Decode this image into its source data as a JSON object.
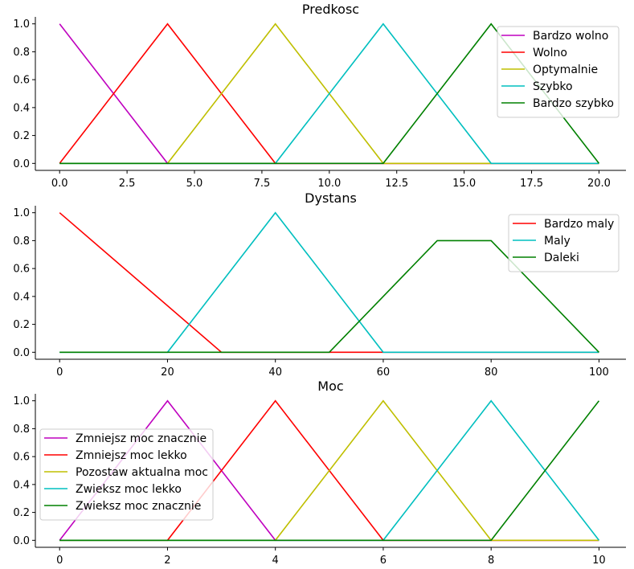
{
  "chart_data": [
    {
      "type": "line",
      "title": "Predkosc",
      "xlabel": "",
      "ylabel": "",
      "xlim": [
        -0.9,
        21.0
      ],
      "ylim": [
        -0.05,
        1.05
      ],
      "xticks": [
        0.0,
        2.5,
        5.0,
        7.5,
        10.0,
        12.5,
        15.0,
        17.5,
        20.0
      ],
      "xtick_labels": [
        "0.0",
        "2.5",
        "5.0",
        "7.5",
        "10.0",
        "12.5",
        "15.0",
        "17.5",
        "20.0"
      ],
      "yticks": [
        0.0,
        0.2,
        0.4,
        0.6,
        0.8,
        1.0
      ],
      "ytick_labels": [
        "0.0",
        "0.2",
        "0.4",
        "0.6",
        "0.8",
        "1.0"
      ],
      "legend": "top-right",
      "grid": false,
      "series": [
        {
          "name": "Bardzo wolno",
          "color": "#bf00bf",
          "x": [
            0,
            4,
            20
          ],
          "y": [
            1,
            0,
            0
          ]
        },
        {
          "name": "Wolno",
          "color": "#ff0000",
          "x": [
            0,
            4,
            8,
            20
          ],
          "y": [
            0,
            1,
            0,
            0
          ]
        },
        {
          "name": "Optymalnie",
          "color": "#bfbf00",
          "x": [
            0,
            4,
            8,
            12,
            20
          ],
          "y": [
            0,
            0,
            1,
            0,
            0
          ]
        },
        {
          "name": "Szybko",
          "color": "#00bfbf",
          "x": [
            0,
            8,
            12,
            16,
            20
          ],
          "y": [
            0,
            0,
            1,
            0,
            0
          ]
        },
        {
          "name": "Bardzo szybko",
          "color": "#008000",
          "x": [
            0,
            12,
            16,
            20
          ],
          "y": [
            0,
            0,
            1,
            0
          ]
        }
      ]
    },
    {
      "type": "line",
      "title": "Dystans",
      "xlabel": "",
      "ylabel": "",
      "xlim": [
        -4.5,
        105.0
      ],
      "ylim": [
        -0.05,
        1.05
      ],
      "xticks": [
        0,
        20,
        40,
        60,
        80,
        100
      ],
      "xtick_labels": [
        "0",
        "20",
        "40",
        "60",
        "80",
        "100"
      ],
      "yticks": [
        0.0,
        0.2,
        0.4,
        0.6,
        0.8,
        1.0
      ],
      "ytick_labels": [
        "0.0",
        "0.2",
        "0.4",
        "0.6",
        "0.8",
        "1.0"
      ],
      "legend": "top-right",
      "grid": false,
      "series": [
        {
          "name": "Bardzo maly",
          "color": "#ff0000",
          "x": [
            0,
            30,
            100
          ],
          "y": [
            1,
            0,
            0
          ]
        },
        {
          "name": "Maly",
          "color": "#00bfbf",
          "x": [
            0,
            20,
            40,
            60,
            100
          ],
          "y": [
            0,
            0,
            1,
            0,
            0
          ]
        },
        {
          "name": "Daleki",
          "color": "#008000",
          "x": [
            0,
            50,
            70,
            80,
            100
          ],
          "y": [
            0,
            0,
            0.8,
            0.8,
            0
          ]
        }
      ]
    },
    {
      "type": "line",
      "title": "Moc",
      "xlabel": "",
      "ylabel": "",
      "xlim": [
        -0.45,
        10.5
      ],
      "ylim": [
        -0.05,
        1.05
      ],
      "xticks": [
        0,
        2,
        4,
        6,
        8,
        10
      ],
      "xtick_labels": [
        "0",
        "2",
        "4",
        "6",
        "8",
        "10"
      ],
      "yticks": [
        0.0,
        0.2,
        0.4,
        0.6,
        0.8,
        1.0
      ],
      "ytick_labels": [
        "0.0",
        "0.2",
        "0.4",
        "0.6",
        "0.8",
        "1.0"
      ],
      "legend": "center-left",
      "grid": false,
      "series": [
        {
          "name": "Zmniejsz moc znacznie",
          "color": "#bf00bf",
          "x": [
            0,
            2,
            4,
            10
          ],
          "y": [
            0,
            1,
            0,
            0
          ]
        },
        {
          "name": "Zmniejsz moc lekko",
          "color": "#ff0000",
          "x": [
            0,
            2,
            4,
            6,
            10
          ],
          "y": [
            0,
            0,
            1,
            0,
            0
          ]
        },
        {
          "name": "Pozostaw aktualna moc",
          "color": "#bfbf00",
          "x": [
            0,
            4,
            6,
            8,
            10
          ],
          "y": [
            0,
            0,
            1,
            0,
            0
          ]
        },
        {
          "name": "Zwieksz moc lekko",
          "color": "#00bfbf",
          "x": [
            0,
            6,
            8,
            10
          ],
          "y": [
            0,
            0,
            1,
            0
          ]
        },
        {
          "name": "Zwieksz moc znacznie",
          "color": "#008000",
          "x": [
            0,
            8,
            10
          ],
          "y": [
            0,
            0,
            1
          ]
        }
      ]
    }
  ]
}
